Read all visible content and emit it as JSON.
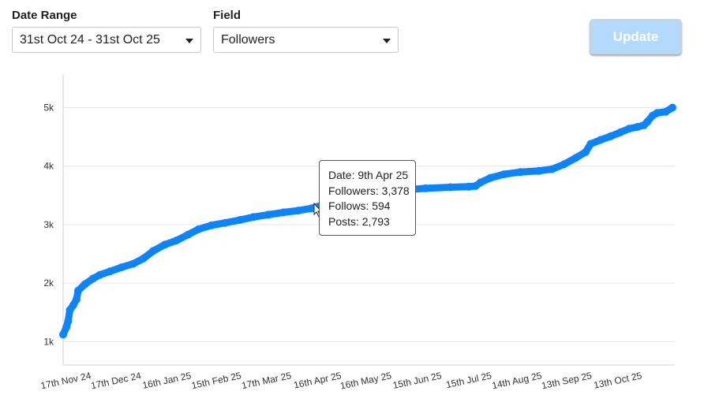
{
  "controls": {
    "date_range_label": "Date Range",
    "date_range_value": "31st Oct 24 - 31st Oct 25",
    "field_label": "Field",
    "field_value": "Followers",
    "update_label": "Update"
  },
  "colors": {
    "series": "#0a84ff",
    "gridline": "#e6e6e6",
    "axis": "#d0d0d0",
    "update_button": "#b3dafd"
  },
  "tooltip": {
    "date": "Date: 9th Apr 25",
    "followers": "Followers: 3,378",
    "follows": "Follows: 594",
    "posts": "Posts: 2,793"
  },
  "chart_data": {
    "type": "line",
    "title": "",
    "xlabel": "",
    "ylabel": "",
    "x_range": [
      "2024-10-31",
      "2025-10-31"
    ],
    "ylim": [
      600,
      5560
    ],
    "yticks": [
      1000,
      2000,
      3000,
      4000,
      5000
    ],
    "ytick_labels": [
      "1k",
      "2k",
      "3k",
      "4k",
      "5k"
    ],
    "xtick_labels": [
      "17th Nov 24",
      "17th Dec 24",
      "16th Jan 25",
      "15th Feb 25",
      "17th Mar 25",
      "16th Apr 25",
      "16th May 25",
      "15th Jun 25",
      "15th Jul 25",
      "14th Aug 25",
      "13th Sep 25",
      "13th Oct 25"
    ],
    "grid": true,
    "legend": "none",
    "series": [
      {
        "points": [
          [
            "2024-10-31",
            1120
          ],
          [
            "2024-11-02",
            1250
          ],
          [
            "2024-11-03",
            1350
          ],
          [
            "2024-11-04",
            1540
          ],
          [
            "2024-11-06",
            1620
          ],
          [
            "2024-11-08",
            1720
          ],
          [
            "2024-11-09",
            1870
          ],
          [
            "2024-11-13",
            1980
          ],
          [
            "2024-11-18",
            2080
          ],
          [
            "2024-11-22",
            2140
          ],
          [
            "2024-11-28",
            2200
          ],
          [
            "2024-12-05",
            2270
          ],
          [
            "2024-12-12",
            2330
          ],
          [
            "2024-12-18",
            2420
          ],
          [
            "2024-12-24",
            2550
          ],
          [
            "2024-12-31",
            2660
          ],
          [
            "2025-01-07",
            2730
          ],
          [
            "2025-01-14",
            2830
          ],
          [
            "2025-01-20",
            2920
          ],
          [
            "2025-01-28",
            2990
          ],
          [
            "2025-02-05",
            3030
          ],
          [
            "2025-02-14",
            3080
          ],
          [
            "2025-02-22",
            3130
          ],
          [
            "2025-03-03",
            3170
          ],
          [
            "2025-03-12",
            3210
          ],
          [
            "2025-03-21",
            3240
          ],
          [
            "2025-03-29",
            3280
          ],
          [
            "2025-04-09",
            3378
          ],
          [
            "2025-04-20",
            3440
          ],
          [
            "2025-04-30",
            3500
          ],
          [
            "2025-05-10",
            3550
          ],
          [
            "2025-05-22",
            3590
          ],
          [
            "2025-06-05",
            3620
          ],
          [
            "2025-06-20",
            3640
          ],
          [
            "2025-07-01",
            3650
          ],
          [
            "2025-07-05",
            3660
          ],
          [
            "2025-07-08",
            3720
          ],
          [
            "2025-07-14",
            3800
          ],
          [
            "2025-07-22",
            3860
          ],
          [
            "2025-08-01",
            3900
          ],
          [
            "2025-08-12",
            3920
          ],
          [
            "2025-08-20",
            3950
          ],
          [
            "2025-08-27",
            4030
          ],
          [
            "2025-09-03",
            4140
          ],
          [
            "2025-09-09",
            4240
          ],
          [
            "2025-09-12",
            4380
          ],
          [
            "2025-09-18",
            4450
          ],
          [
            "2025-09-24",
            4510
          ],
          [
            "2025-09-30",
            4580
          ],
          [
            "2025-10-05",
            4640
          ],
          [
            "2025-10-10",
            4670
          ],
          [
            "2025-10-14",
            4700
          ],
          [
            "2025-10-16",
            4760
          ],
          [
            "2025-10-19",
            4860
          ],
          [
            "2025-10-22",
            4910
          ],
          [
            "2025-10-27",
            4930
          ],
          [
            "2025-10-31",
            5000
          ]
        ]
      }
    ]
  }
}
